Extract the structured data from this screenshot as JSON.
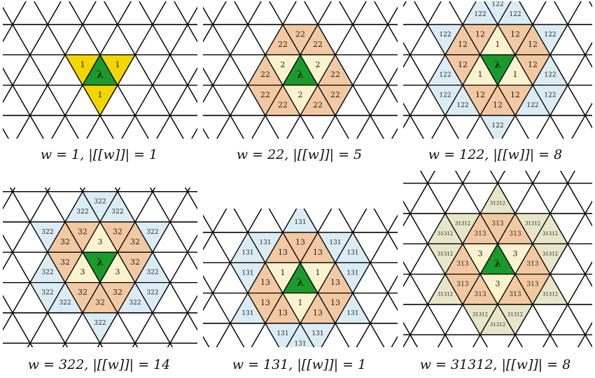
{
  "panels": [
    {
      "caption": "w = 1,  |[[w]]| = 1",
      "center_label": "λ",
      "labels": {
        "inner": "1",
        "mid": "",
        "outer": ""
      },
      "rings": 1,
      "fills": {
        "inner": "#f2d600",
        "mid": "#f2c9a2",
        "outer": "#dbecf4"
      }
    },
    {
      "caption": "w = 22,  |[[w]]| = 5",
      "center_label": "λ",
      "labels": {
        "inner": "2",
        "mid": "22",
        "outer": ""
      },
      "rings": 2,
      "fills": {
        "inner": "#fbf3cf",
        "mid": "#f2c9a2",
        "outer": "#dbecf4"
      }
    },
    {
      "caption": "w = 122,  |[[w]]| = 8",
      "center_label": "λ",
      "labels": {
        "inner": "1",
        "mid": "12",
        "outer": "122"
      },
      "rings": 3,
      "fills": {
        "inner": "#fbf3cf",
        "mid": "#f2c9a2",
        "outer": "#dbecf4"
      }
    },
    {
      "caption": "w = 322,  |[[w]]| = 14",
      "center_label": "λ",
      "labels": {
        "inner": "3",
        "mid": "32",
        "outer": "322"
      },
      "rings": 3,
      "fills": {
        "inner": "#fbf3cf",
        "mid": "#f2c9a2",
        "outer": "#dbecf4"
      }
    },
    {
      "caption": "w = 131,  |[[w]]| = 1",
      "center_label": "λ",
      "labels": {
        "inner": "1",
        "mid": "13",
        "outer": "131"
      },
      "rings": 3,
      "fills": {
        "inner": "#fbf3cf",
        "mid": "#f2c9a2",
        "outer": "#dbecf4"
      }
    },
    {
      "caption": "w = 31312,  |[[w]]| = 8",
      "center_label": "λ",
      "labels": {
        "inner": "3",
        "mid": "313",
        "outer": "31312"
      },
      "rings": 3,
      "fills": {
        "inner": "#fbf3cf",
        "mid": "#f2c9a2",
        "outer": "#e8e6c9"
      }
    }
  ],
  "colors": {
    "center": "#1a9a2a",
    "grid": "#000000"
  }
}
